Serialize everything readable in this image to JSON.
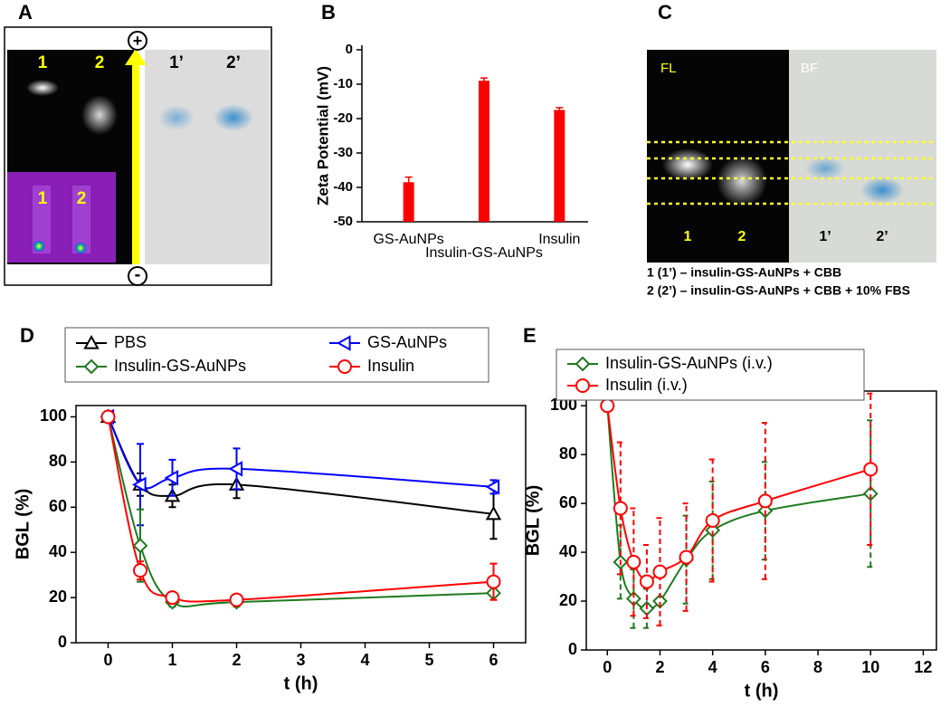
{
  "panels": {
    "A": {
      "label": "A",
      "plus": "+",
      "minus": "-",
      "lanes_fl": [
        "1",
        "2"
      ],
      "lanes_bf": [
        "1’",
        "2’"
      ],
      "inset_lanes": [
        "1",
        "2"
      ]
    },
    "C": {
      "label": "C",
      "fl": "FL",
      "bf": "BF",
      "lanes_fl": [
        "1",
        "2"
      ],
      "lanes_bf": [
        "1’",
        "2’"
      ],
      "captions": [
        "1 (1’) – insulin-GS-AuNPs + CBB",
        "2 (2’) – insulin-GS-AuNPs + CBB + 10% FBS"
      ]
    }
  },
  "chart_data": [
    {
      "type": "bar",
      "label": "B",
      "y_label": "Zeta Potential (mV)",
      "categories": [
        "GS-AuNPs",
        "Insulin-GS-AuNPs",
        "Insulin"
      ],
      "values": [
        -38.5,
        -9,
        -17.5
      ],
      "errors": [
        1.5,
        0.8,
        0.7
      ],
      "color": "#ff0000",
      "ylim": [
        -50,
        0
      ],
      "yticks": [
        0,
        -10,
        -20,
        -30,
        -40,
        -50
      ]
    },
    {
      "type": "line",
      "label": "D",
      "x_label": "t (h)",
      "y_label": "BGL (%)",
      "legend": "top",
      "x": [
        0,
        0.5,
        1,
        2,
        6
      ],
      "series": [
        {
          "name": "PBS",
          "color": "#000000",
          "marker": "triangle-up",
          "values": [
            100,
            70,
            65,
            70,
            57
          ],
          "errors": [
            0,
            5,
            5,
            6,
            11
          ]
        },
        {
          "name": "GS-AuNPs",
          "color": "#0000ff",
          "marker": "triangle-left",
          "values": [
            100,
            70,
            73,
            77,
            69
          ],
          "errors": [
            0,
            18,
            8,
            9,
            3
          ]
        },
        {
          "name": "Insulin-GS-AuNPs",
          "color": "#1f7a1f",
          "marker": "diamond",
          "values": [
            100,
            43,
            18,
            18,
            22
          ],
          "errors": [
            0,
            16,
            2,
            2,
            3
          ]
        },
        {
          "name": "Insulin",
          "color": "#ff0000",
          "marker": "circle",
          "values": [
            100,
            32,
            20,
            19,
            27
          ],
          "errors": [
            0,
            4,
            2,
            2,
            8
          ]
        }
      ],
      "xlim": [
        -0.5,
        6.5
      ],
      "xticks": [
        0,
        1,
        2,
        3,
        4,
        5,
        6
      ],
      "ylim": [
        0,
        105
      ],
      "yticks": [
        0,
        20,
        40,
        60,
        80,
        100
      ]
    },
    {
      "type": "line",
      "label": "E",
      "x_label": "t (h)",
      "y_label": "BGL (%)",
      "legend": "top",
      "dashed_errors": true,
      "x": [
        0,
        0.5,
        1,
        1.5,
        2,
        3,
        4,
        6,
        10
      ],
      "series": [
        {
          "name": "Insulin-GS-AuNPs (i.v.)",
          "color": "#1f7a1f",
          "marker": "diamond",
          "values": [
            100,
            36,
            21,
            17,
            20,
            37,
            49,
            57,
            64
          ],
          "errors": [
            0,
            15,
            12,
            8,
            10,
            18,
            20,
            20,
            30
          ]
        },
        {
          "name": "Insulin (i.v.)",
          "color": "#ff0000",
          "marker": "circle",
          "values": [
            100,
            58,
            36,
            28,
            32,
            38,
            53,
            61,
            74
          ],
          "errors": [
            0,
            27,
            22,
            15,
            22,
            22,
            25,
            32,
            31
          ]
        }
      ],
      "xlim": [
        -0.8,
        12.5
      ],
      "xticks": [
        0,
        2,
        4,
        6,
        8,
        10,
        12
      ],
      "ylim": [
        0,
        106
      ],
      "yticks": [
        0,
        20,
        40,
        60,
        80,
        100
      ]
    }
  ]
}
